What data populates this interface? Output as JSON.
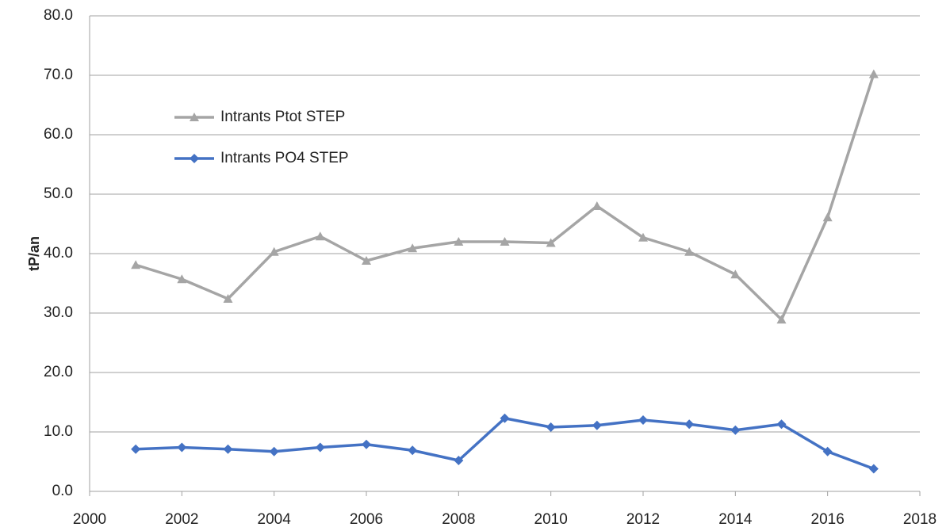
{
  "chart_data": {
    "type": "line",
    "y_label": "tP/an",
    "x": [
      2001,
      2002,
      2003,
      2004,
      2005,
      2006,
      2007,
      2008,
      2009,
      2010,
      2011,
      2012,
      2013,
      2014,
      2015,
      2016,
      2017
    ],
    "series": [
      {
        "name": "Intrants Ptot STEP",
        "color": "#a5a5a5",
        "marker": "triangle",
        "values": [
          38.1,
          35.7,
          32.4,
          40.3,
          42.9,
          38.8,
          40.9,
          42.0,
          42.0,
          41.8,
          48.0,
          42.7,
          40.3,
          36.5,
          28.9,
          46.1,
          70.2
        ]
      },
      {
        "name": "Intrants PO4 STEP",
        "color": "#4472c4",
        "marker": "diamond",
        "values": [
          7.1,
          7.4,
          7.1,
          6.7,
          7.4,
          7.9,
          6.9,
          5.2,
          12.3,
          10.8,
          11.1,
          12.0,
          11.3,
          10.3,
          11.3,
          6.7,
          3.8
        ]
      }
    ],
    "xlim": [
      2000,
      2018
    ],
    "xticks": [
      2000,
      2002,
      2004,
      2006,
      2008,
      2010,
      2012,
      2014,
      2016,
      2018
    ],
    "ylim": [
      0,
      80
    ],
    "yticks": [
      {
        "value": 0,
        "label": "0.0"
      },
      {
        "value": 10,
        "label": "10.0"
      },
      {
        "value": 20,
        "label": "20.0"
      },
      {
        "value": 30,
        "label": "30.0"
      },
      {
        "value": 40,
        "label": "40.0"
      },
      {
        "value": 50,
        "label": "50.0"
      },
      {
        "value": 60,
        "label": "60.0"
      },
      {
        "value": 70,
        "label": "70.0"
      },
      {
        "value": 80,
        "label": "80.0"
      }
    ],
    "grid": true,
    "legend": "upper left"
  }
}
